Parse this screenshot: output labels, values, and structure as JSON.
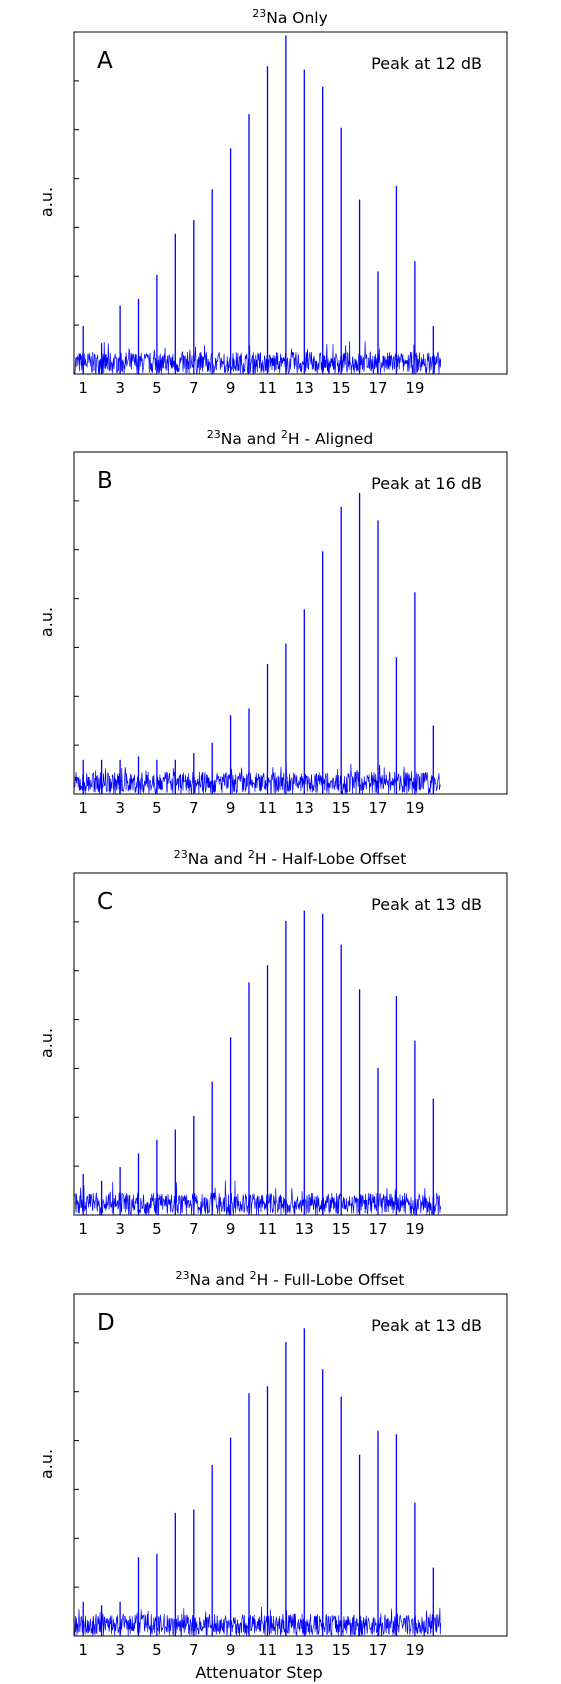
{
  "chart_data": [
    {
      "type": "line",
      "title": {
        "sup": "23",
        "main": "Na Only"
      },
      "panel_label": "A",
      "peak_text": "Peak at 12 dB",
      "ylabel": "a.u.",
      "xlabel": "",
      "x_ticks": [
        "1",
        "3",
        "5",
        "7",
        "9",
        "11",
        "13",
        "15",
        "17",
        "19"
      ],
      "xlim": [
        0.5,
        24
      ],
      "ylim": [
        0,
        1.0
      ],
      "noise_level": 0.065,
      "series": [
        {
          "x": [
            1,
            2,
            3,
            4,
            5,
            6,
            7,
            8,
            9,
            10,
            11,
            12,
            13,
            14,
            15,
            16,
            17,
            18,
            19,
            20
          ],
          "values": [
            0.14,
            0.09,
            0.2,
            0.22,
            0.29,
            0.41,
            0.45,
            0.54,
            0.66,
            0.76,
            0.9,
            0.99,
            0.89,
            0.84,
            0.72,
            0.51,
            0.3,
            0.55,
            0.33,
            0.14
          ]
        }
      ]
    },
    {
      "type": "line",
      "title": {
        "sup1": "23",
        "part1": "Na and ",
        "sup2": "2",
        "part2": "H - Aligned"
      },
      "panel_label": "B",
      "peak_text": "Peak at 16 dB",
      "ylabel": "a.u.",
      "xlabel": "",
      "x_ticks": [
        "1",
        "3",
        "5",
        "7",
        "9",
        "11",
        "13",
        "15",
        "17",
        "19"
      ],
      "xlim": [
        0.5,
        24
      ],
      "ylim": [
        0,
        1.0
      ],
      "noise_level": 0.065,
      "series": [
        {
          "x": [
            1,
            2,
            3,
            4,
            5,
            6,
            7,
            8,
            9,
            10,
            11,
            12,
            13,
            14,
            15,
            16,
            17,
            18,
            19,
            20
          ],
          "values": [
            0.1,
            0.1,
            0.1,
            0.11,
            0.1,
            0.1,
            0.12,
            0.15,
            0.23,
            0.25,
            0.38,
            0.44,
            0.54,
            0.71,
            0.84,
            0.88,
            0.8,
            0.4,
            0.59,
            0.2
          ]
        }
      ]
    },
    {
      "type": "line",
      "title": {
        "sup1": "23",
        "part1": "Na and ",
        "sup2": "2",
        "part2": "H - Half-Lobe Offset"
      },
      "panel_label": "C",
      "peak_text": "Peak at 13 dB",
      "ylabel": "a.u.",
      "xlabel": "",
      "x_ticks": [
        "1",
        "3",
        "5",
        "7",
        "9",
        "11",
        "13",
        "15",
        "17",
        "19"
      ],
      "xlim": [
        0.5,
        24
      ],
      "ylim": [
        0,
        1.0
      ],
      "noise_level": 0.065,
      "series": [
        {
          "x": [
            1,
            2,
            3,
            4,
            5,
            6,
            7,
            8,
            9,
            10,
            11,
            12,
            13,
            14,
            15,
            16,
            17,
            18,
            19,
            20
          ],
          "values": [
            0.12,
            0.1,
            0.14,
            0.18,
            0.22,
            0.25,
            0.29,
            0.39,
            0.52,
            0.68,
            0.73,
            0.86,
            0.89,
            0.88,
            0.79,
            0.66,
            0.43,
            0.64,
            0.51,
            0.34
          ]
        }
      ]
    },
    {
      "type": "line",
      "title": {
        "sup1": "23",
        "part1": "Na and ",
        "sup2": "2",
        "part2": "H - Full-Lobe Offset"
      },
      "panel_label": "D",
      "peak_text": "Peak at 13 dB",
      "ylabel": "a.u.",
      "xlabel": "Attenuator Step",
      "x_ticks": [
        "1",
        "3",
        "5",
        "7",
        "9",
        "11",
        "13",
        "15",
        "17",
        "19"
      ],
      "xlim": [
        0.5,
        24
      ],
      "ylim": [
        0,
        1.0
      ],
      "noise_level": 0.065,
      "series": [
        {
          "x": [
            1,
            2,
            3,
            4,
            5,
            6,
            7,
            8,
            9,
            10,
            11,
            12,
            13,
            14,
            15,
            16,
            17,
            18,
            19,
            20
          ],
          "values": [
            0.1,
            0.09,
            0.1,
            0.23,
            0.24,
            0.36,
            0.37,
            0.5,
            0.58,
            0.71,
            0.73,
            0.86,
            0.9,
            0.78,
            0.7,
            0.53,
            0.6,
            0.59,
            0.39,
            0.2
          ]
        }
      ]
    }
  ]
}
